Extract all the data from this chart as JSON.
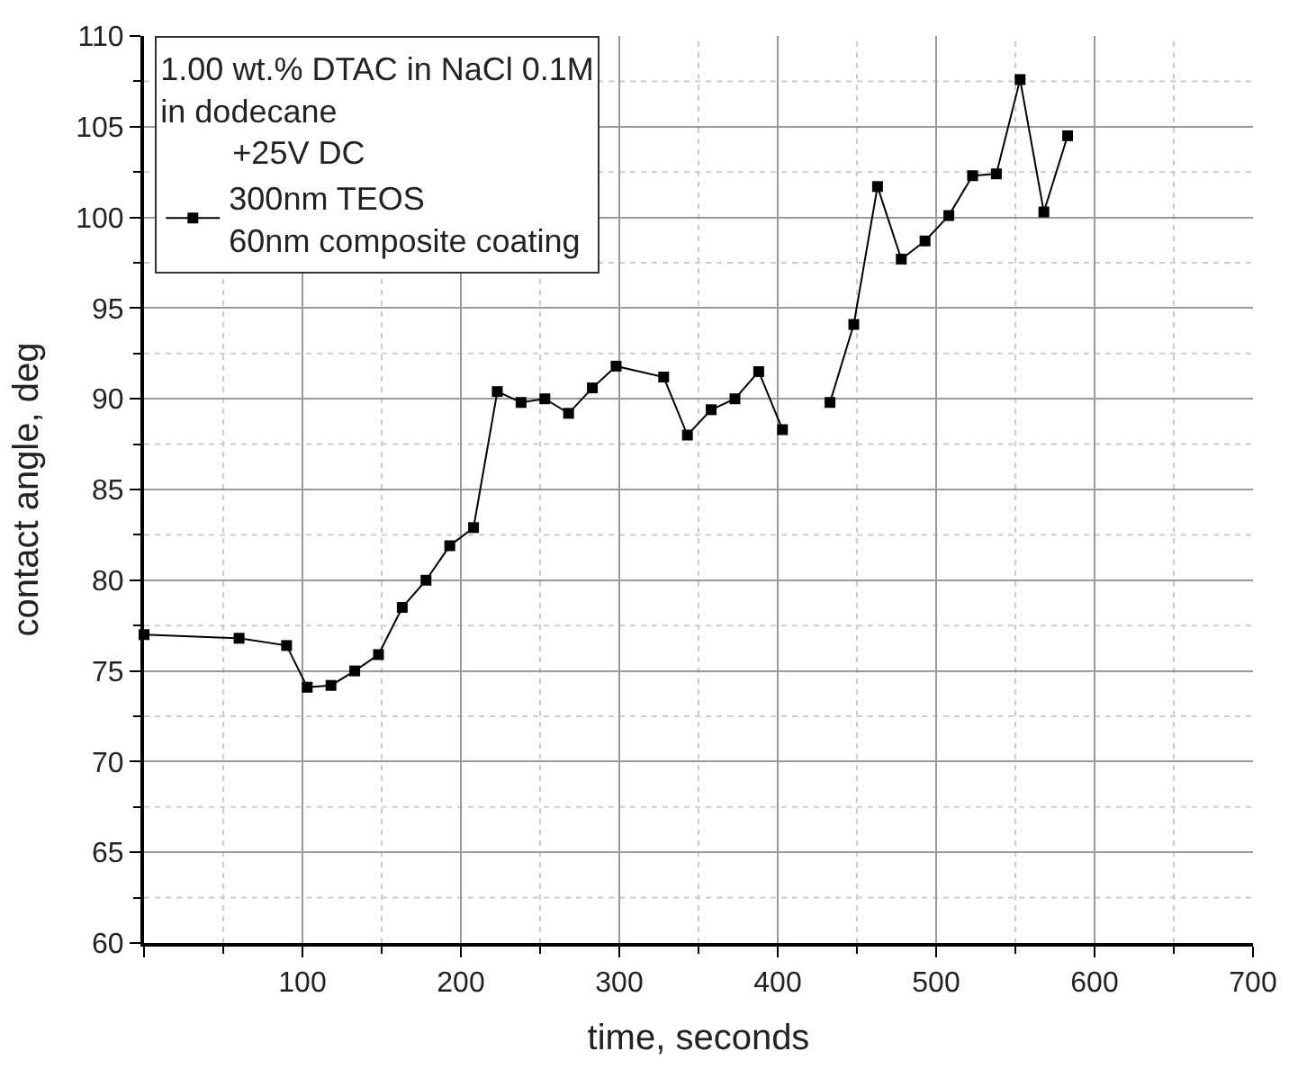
{
  "chart_data": {
    "type": "line",
    "xlabel": "time, seconds",
    "ylabel": "contact angle, deg",
    "legend_title": "1.00 wt.% DTAC in NaCl 0.1M\nin dodecane\n        +25V DC",
    "legend": "top left",
    "grid": true,
    "marker": "square",
    "line_style": "solid",
    "xlim": [
      0,
      700
    ],
    "ylim": [
      60,
      110
    ],
    "xticks": [
      {
        "value": 0,
        "label": null
      },
      100,
      200,
      300,
      400,
      500,
      600,
      700
    ],
    "yticks": [
      60,
      65,
      70,
      75,
      80,
      85,
      90,
      95,
      100,
      105,
      110
    ],
    "x": [
      0,
      60,
      90,
      103,
      118,
      133,
      148,
      163,
      178,
      193,
      208,
      223,
      238,
      253,
      268,
      283,
      298,
      328,
      343,
      358,
      373,
      388,
      403,
      418,
      433,
      448,
      463,
      478,
      493,
      508,
      523,
      538,
      553,
      568,
      583
    ],
    "series": [
      {
        "name": "300nm TEOS\n60nm composite coating",
        "color": "#000000",
        "values": [
          77.0,
          76.8,
          76.4,
          74.1,
          74.2,
          75.0,
          75.9,
          78.5,
          80.0,
          81.9,
          82.9,
          90.4,
          89.8,
          90.0,
          89.2,
          90.6,
          91.8,
          91.2,
          88.0,
          89.4,
          90.0,
          91.5,
          88.3,
          null,
          89.8,
          94.1,
          101.7,
          97.7,
          98.7,
          100.1,
          102.3,
          102.4,
          107.6,
          100.3,
          104.5
        ]
      }
    ]
  }
}
